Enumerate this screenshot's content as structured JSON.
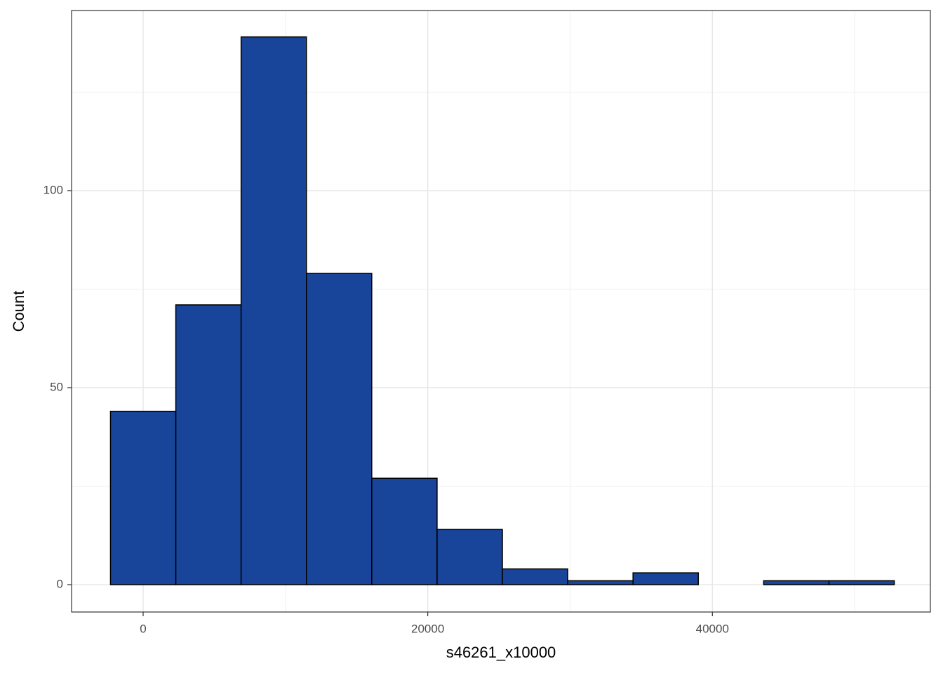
{
  "chart_data": {
    "type": "histogram",
    "x_label": "s46261_x10000",
    "y_label": "Count",
    "bins": [
      -2295,
      2295,
      6885,
      11475,
      16065,
      20655,
      25245,
      29835,
      34425,
      39015,
      43605,
      48195,
      52785
    ],
    "values": [
      44,
      71,
      139,
      79,
      27,
      14,
      4,
      1,
      3,
      0,
      1,
      1
    ],
    "color": "#18449a",
    "edge_color": "#000000",
    "xlim": [
      -5030,
      55320
    ],
    "ylim": [
      -6.94,
      145.7
    ],
    "xticks": [
      0,
      20000,
      40000
    ],
    "yticks": [
      0,
      50,
      100
    ],
    "x_minor_grid": [
      10000,
      30000,
      50000
    ],
    "y_minor_grid": [
      25,
      75,
      125
    ],
    "grid": true
  }
}
